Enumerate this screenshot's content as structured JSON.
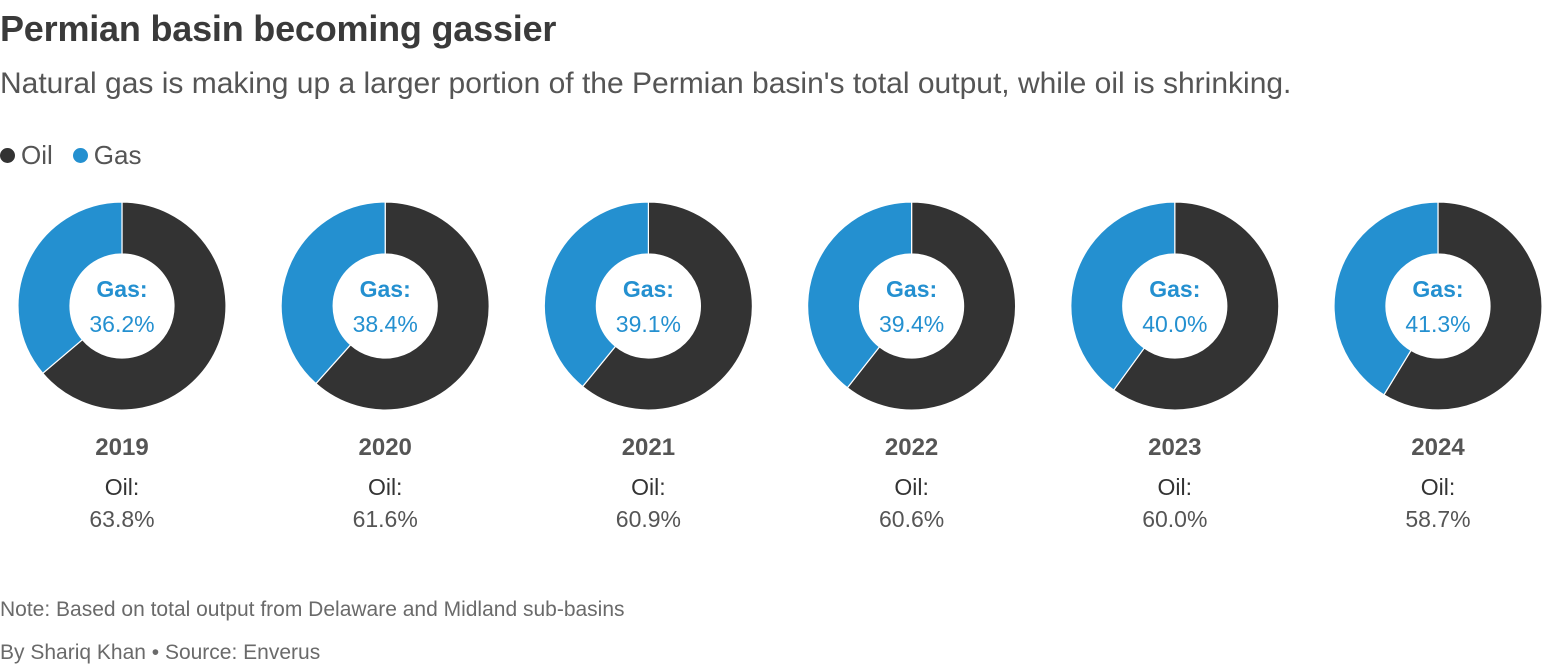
{
  "title": "Permian basin becoming gassier",
  "subtitle": "Natural gas is making up a larger portion of the Permian basin's total output, while oil is shrinking.",
  "legend": [
    {
      "label": "Oil",
      "color": "#333333"
    },
    {
      "label": "Gas",
      "color": "#2490d0"
    }
  ],
  "chart_data": {
    "type": "pie",
    "series_names": [
      "Oil",
      "Gas"
    ],
    "colors": {
      "Oil": "#333333",
      "Gas": "#2490d0"
    },
    "center_label": "Gas:",
    "bottom_label": "Oil:",
    "charts": [
      {
        "year": "2019",
        "oil": 63.8,
        "gas": 36.2,
        "oil_text": "63.8%",
        "gas_text": "36.2%"
      },
      {
        "year": "2020",
        "oil": 61.6,
        "gas": 38.4,
        "oil_text": "61.6%",
        "gas_text": "38.4%"
      },
      {
        "year": "2021",
        "oil": 60.9,
        "gas": 39.1,
        "oil_text": "60.9%",
        "gas_text": "39.1%"
      },
      {
        "year": "2022",
        "oil": 60.6,
        "gas": 39.4,
        "oil_text": "60.6%",
        "gas_text": "39.4%"
      },
      {
        "year": "2023",
        "oil": 60.0,
        "gas": 40.0,
        "oil_text": "60.0%",
        "gas_text": "40.0%"
      },
      {
        "year": "2024",
        "oil": 58.7,
        "gas": 41.3,
        "oil_text": "58.7%",
        "gas_text": "41.3%"
      }
    ]
  },
  "note": "Note: Based on total output from Delaware and Midland sub-basins",
  "byline": "By Shariq Khan • Source: Enverus"
}
